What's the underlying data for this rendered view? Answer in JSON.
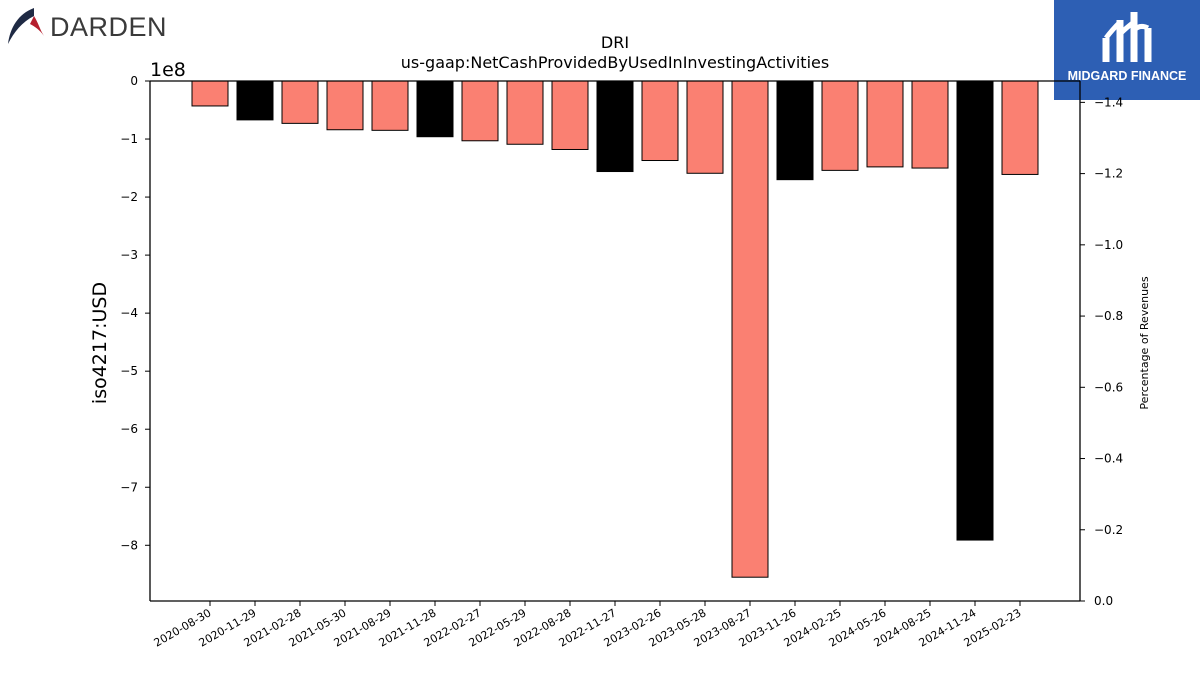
{
  "brand": {
    "name": "DARDEN",
    "icon": "darden-swirl-icon"
  },
  "partner": {
    "name": "MIDGARD FINANCE",
    "icon": "midgard-logo-icon",
    "color": "#2d5fb4"
  },
  "chart_data": {
    "type": "bar",
    "title": "DRI",
    "subtitle": "us-gaap:NetCashProvidedByUsedInInvestingActivities",
    "ylabel": "iso4217:USD",
    "y_offset_label": "1e8",
    "y2label": "Percentage of Revenues",
    "ylim": [
      -8.96,
      0
    ],
    "yticks": [
      "0",
      "−1",
      "−2",
      "−3",
      "−4",
      "−5",
      "−6",
      "−7",
      "−8"
    ],
    "y2ticks": [
      "0.0",
      "−0.2",
      "−0.4",
      "−0.6",
      "−0.8",
      "−1.0",
      "−1.2",
      "−1.4"
    ],
    "categories": [
      "2020-08-30",
      "2020-11-29",
      "2021-02-28",
      "2021-05-30",
      "2021-08-29",
      "2021-11-28",
      "2022-02-27",
      "2022-05-29",
      "2022-08-28",
      "2022-11-27",
      "2023-02-26",
      "2023-05-28",
      "2023-08-27",
      "2023-11-26",
      "2024-02-25",
      "2024-05-26",
      "2024-08-25",
      "2024-11-24",
      "2025-02-23"
    ],
    "values": [
      -0.43,
      -0.67,
      -0.73,
      -0.84,
      -0.85,
      -0.96,
      -1.03,
      -1.09,
      -1.18,
      -1.56,
      -1.37,
      -1.59,
      -8.55,
      -1.7,
      -1.54,
      -1.48,
      -1.5,
      -7.91,
      -1.61
    ],
    "bar_colors": [
      "#fa8072",
      "#000000",
      "#fa8072",
      "#fa8072",
      "#fa8072",
      "#000000",
      "#fa8072",
      "#fa8072",
      "#fa8072",
      "#000000",
      "#fa8072",
      "#fa8072",
      "#fa8072",
      "#000000",
      "#fa8072",
      "#fa8072",
      "#fa8072",
      "#000000",
      "#fa8072"
    ],
    "grid": false,
    "legend": "none"
  }
}
